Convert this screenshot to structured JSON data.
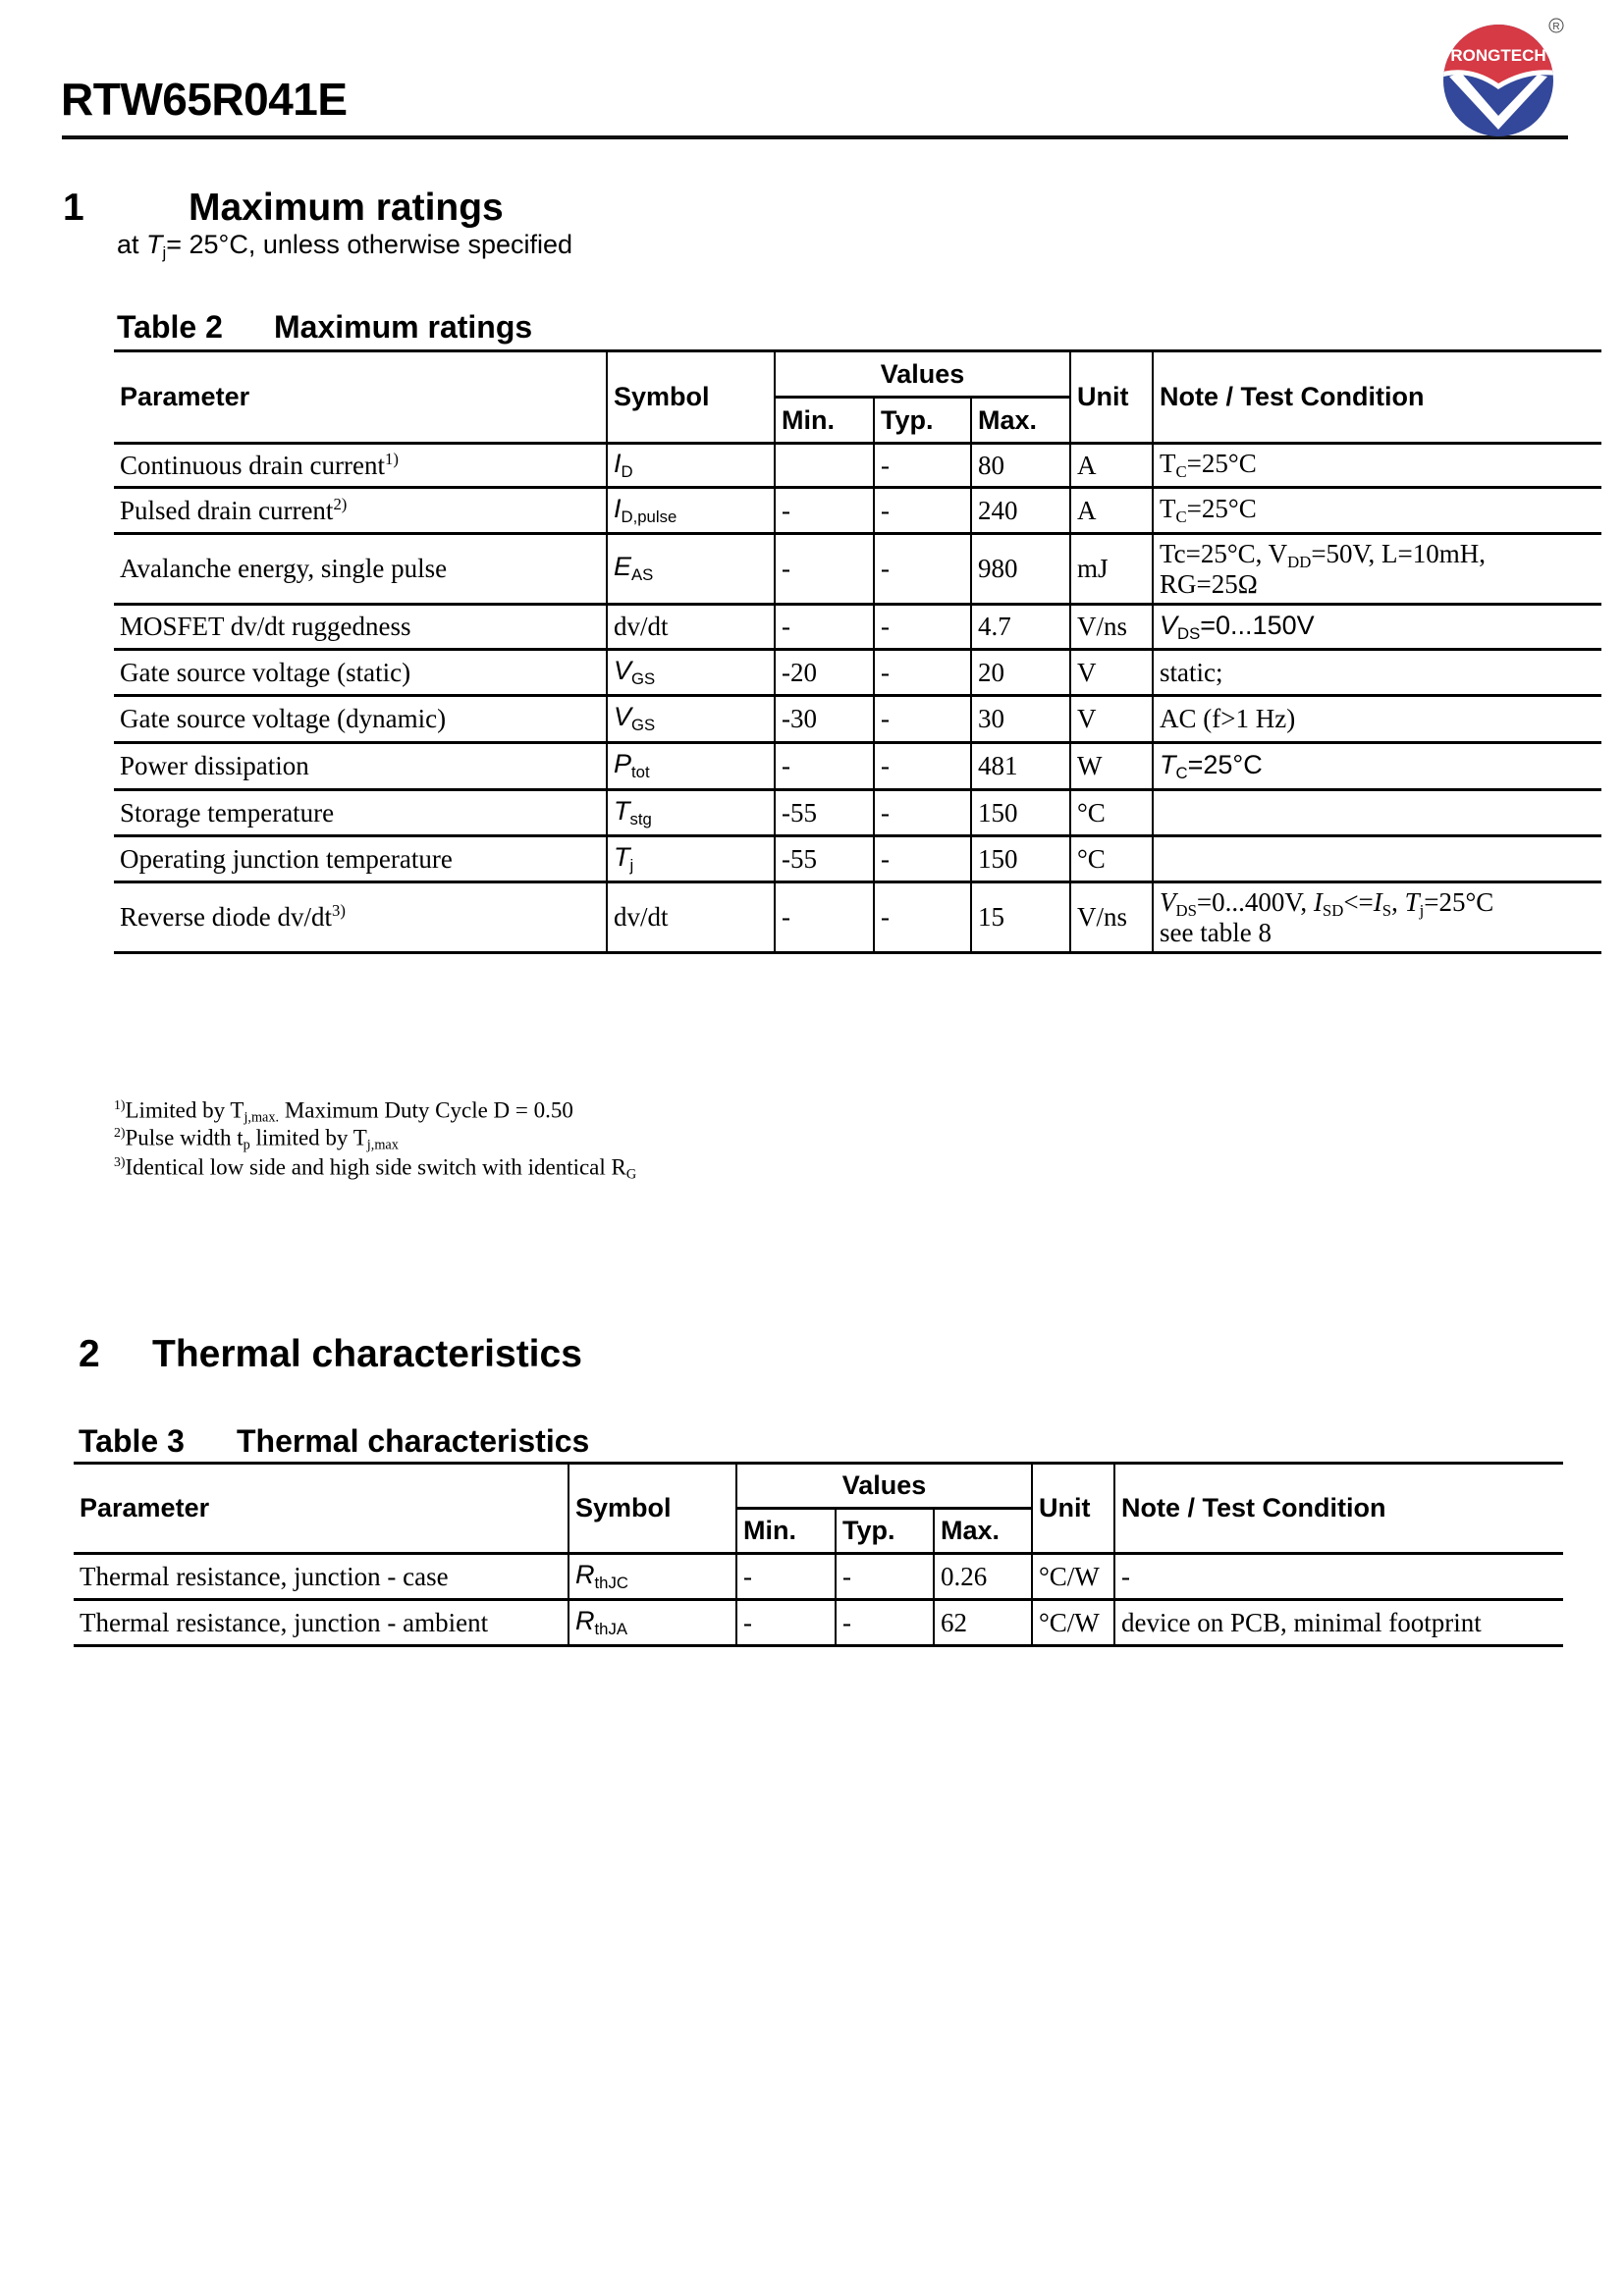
{
  "header": {
    "title": "RTW65R041E",
    "logo_text": "RONGTECH",
    "registered_mark": "®",
    "colors": {
      "logo_red": "#d63a45",
      "logo_blue": "#33489a"
    }
  },
  "section1": {
    "number": "1",
    "title": "Maximum ratings",
    "subtitle": [
      [
        "at ",
        ""
      ],
      [
        "T",
        "i"
      ],
      [
        "j",
        "sub"
      ],
      [
        "= 25°C, unless otherwise specified",
        ""
      ]
    ]
  },
  "table2": {
    "label": "Table 2",
    "title": "Maximum ratings",
    "headers": {
      "parameter": "Parameter",
      "symbol": "Symbol",
      "values": "Values",
      "min": "Min.",
      "typ": "Typ.",
      "max": "Max.",
      "unit": "Unit",
      "note": "Note / Test Condition"
    },
    "rows": [
      {
        "parameter": [
          [
            "Continuous drain current",
            ""
          ],
          [
            "1)",
            "sup"
          ]
        ],
        "symbol": [
          [
            "I",
            "si"
          ],
          [
            "D",
            "ssub"
          ]
        ],
        "min": "",
        "typ": "-",
        "max": "80",
        "unit": "A",
        "note": [
          [
            "T",
            ""
          ],
          [
            "C",
            "sub"
          ],
          [
            "=25°C",
            ""
          ]
        ]
      },
      {
        "parameter": [
          [
            "Pulsed drain current",
            ""
          ],
          [
            "2)",
            "sup"
          ]
        ],
        "symbol": [
          [
            "I",
            "si"
          ],
          [
            "D,pulse",
            "ssub"
          ]
        ],
        "min": "-",
        "typ": "-",
        "max": "240",
        "unit": "A",
        "note": [
          [
            "T",
            ""
          ],
          [
            "C",
            "sub"
          ],
          [
            "=25°C",
            ""
          ]
        ]
      },
      {
        "parameter": [
          [
            "Avalanche energy, single pulse",
            ""
          ]
        ],
        "symbol": [
          [
            "E",
            "si"
          ],
          [
            "AS",
            "ssub"
          ]
        ],
        "min": "-",
        "typ": "-",
        "max": "980",
        "unit": "mJ",
        "note": [
          [
            "Tc=25°C, V",
            ""
          ],
          [
            "DD",
            "sub"
          ],
          [
            "=50V, L=10mH,",
            ""
          ],
          [
            "\n",
            ""
          ],
          [
            "RG=25Ω",
            ""
          ]
        ]
      },
      {
        "parameter": [
          [
            "MOSFET dv/dt ruggedness",
            ""
          ]
        ],
        "symbol": [
          [
            "dv/dt",
            ""
          ]
        ],
        "min": "-",
        "typ": "-",
        "max": "4.7",
        "unit": "V/ns",
        "note": [
          [
            "V",
            "si"
          ],
          [
            "DS",
            "ssub"
          ],
          [
            "=0...150V",
            "s"
          ]
        ]
      },
      {
        "parameter": [
          [
            "Gate source voltage (static)",
            ""
          ]
        ],
        "symbol": [
          [
            "V",
            "si"
          ],
          [
            "GS",
            "ssub"
          ]
        ],
        "min": "-20",
        "typ": "-",
        "max": "20",
        "unit": "V",
        "note": [
          [
            "static;",
            ""
          ]
        ]
      },
      {
        "parameter": [
          [
            "Gate source voltage (dynamic)",
            ""
          ]
        ],
        "symbol": [
          [
            "V",
            "si"
          ],
          [
            "GS",
            "ssub"
          ]
        ],
        "min": "-30",
        "typ": "-",
        "max": "30",
        "unit": "V",
        "note": [
          [
            "AC (f>1 Hz)",
            ""
          ]
        ]
      },
      {
        "parameter": [
          [
            "Power dissipation",
            ""
          ]
        ],
        "symbol": [
          [
            "P",
            "si"
          ],
          [
            "tot",
            "ssub"
          ]
        ],
        "min": "-",
        "typ": "-",
        "max": "481",
        "unit": "W",
        "note": [
          [
            "T",
            "si"
          ],
          [
            "C",
            "ssub"
          ],
          [
            "=25°C",
            "s"
          ]
        ]
      },
      {
        "parameter": [
          [
            "Storage temperature",
            ""
          ]
        ],
        "symbol": [
          [
            "T",
            "si"
          ],
          [
            "stg",
            "ssub"
          ]
        ],
        "min": "-55",
        "typ": "-",
        "max": "150",
        "unit": "°C",
        "note": []
      },
      {
        "parameter": [
          [
            "Operating junction temperature",
            ""
          ]
        ],
        "symbol": [
          [
            "T",
            "si"
          ],
          [
            "j",
            "ssub"
          ]
        ],
        "min": "-55",
        "typ": "-",
        "max": "150",
        "unit": "°C",
        "note": []
      },
      {
        "parameter": [
          [
            "Reverse diode dv/dt",
            ""
          ],
          [
            "3)",
            "sup"
          ]
        ],
        "symbol": [
          [
            "dv/dt",
            ""
          ]
        ],
        "min": "-",
        "typ": "-",
        "max": "15",
        "unit": "V/ns",
        "note": [
          [
            "V",
            "i"
          ],
          [
            "DS",
            "sub"
          ],
          [
            "=0...400V, ",
            ""
          ],
          [
            "I",
            "i"
          ],
          [
            "SD",
            "sub"
          ],
          [
            "<=",
            ""
          ],
          [
            "I",
            "i"
          ],
          [
            "S",
            "sub"
          ],
          [
            ", ",
            ""
          ],
          [
            "T",
            "i"
          ],
          [
            "j",
            "sub"
          ],
          [
            "=25°C",
            ""
          ],
          [
            "\n",
            ""
          ],
          [
            "   see table 8",
            ""
          ]
        ]
      }
    ]
  },
  "footnotes": [
    [
      [
        "1)",
        "sup"
      ],
      [
        "Limited by T",
        ""
      ],
      [
        "j,max.",
        "sub"
      ],
      [
        " Maximum Duty Cycle D = 0.50",
        ""
      ]
    ],
    [
      [
        "2)",
        "sup"
      ],
      [
        "Pulse width t",
        ""
      ],
      [
        "p",
        "sub"
      ],
      [
        " limited by T",
        ""
      ],
      [
        "j,max",
        "sub"
      ]
    ],
    [
      [
        "3)",
        "sup"
      ],
      [
        "Identical low side and high side switch with identical R",
        ""
      ],
      [
        "G",
        "sub"
      ]
    ]
  ],
  "section2": {
    "number": "2",
    "title": "Thermal characteristics"
  },
  "table3": {
    "label": "Table 3",
    "title": "Thermal characteristics",
    "headers": {
      "parameter": "Parameter",
      "symbol": "Symbol",
      "values": "Values",
      "min": "Min.",
      "typ": "Typ.",
      "max": "Max.",
      "unit": "Unit",
      "note": "Note / Test Condition"
    },
    "rows": [
      {
        "parameter": [
          [
            "Thermal resistance, junction    - case",
            ""
          ]
        ],
        "symbol": [
          [
            "R",
            "si"
          ],
          [
            "thJC",
            "ssub"
          ]
        ],
        "min": "-",
        "typ": "-",
        "max": "0.26",
        "unit": "°C/W",
        "note": [
          [
            "-",
            ""
          ]
        ]
      },
      {
        "parameter": [
          [
            "Thermal resistance, junction    - ambient",
            ""
          ]
        ],
        "symbol": [
          [
            "R",
            "si"
          ],
          [
            "thJA",
            "ssub"
          ]
        ],
        "min": "-",
        "typ": "-",
        "max": "62",
        "unit": "°C/W",
        "note": [
          [
            "device on PCB, minimal footprint",
            ""
          ]
        ]
      }
    ]
  }
}
